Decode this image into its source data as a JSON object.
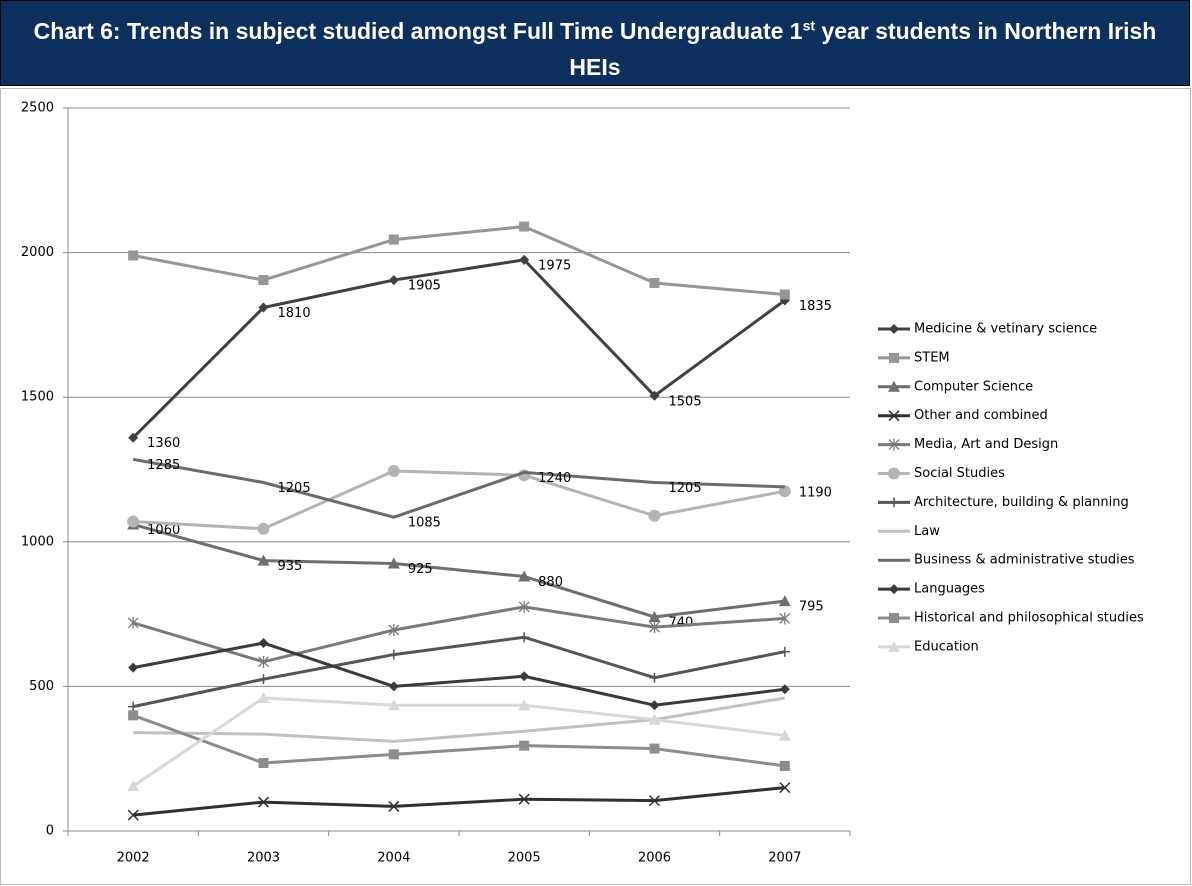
{
  "chart_data": {
    "type": "line",
    "title": [
      "Chart 6: Trends in subject studied amongst Full Time Undergraduate 1",
      "st",
      " year students in Northern Irish HEIs"
    ],
    "categories": [
      "2002",
      "2003",
      "2004",
      "2005",
      "2006",
      "2007"
    ],
    "ylim": [
      0,
      2500
    ],
    "yticks": [
      0,
      500,
      1000,
      1500,
      2000,
      2500
    ],
    "grid": true,
    "legend": "right",
    "series": [
      {
        "name": "Medicine & vetinary science",
        "color": "#404040",
        "marker": "diamond",
        "show_labels": true,
        "values": [
          1360,
          1810,
          1905,
          1975,
          1505,
          1835
        ]
      },
      {
        "name": "STEM",
        "color": "#969696",
        "marker": "square",
        "values": [
          1990,
          1905,
          2045,
          2090,
          1895,
          1855
        ]
      },
      {
        "name": "Computer Science",
        "color": "#6e6e6e",
        "marker": "triangle",
        "show_labels": true,
        "values": [
          1060,
          935,
          925,
          880,
          740,
          795
        ]
      },
      {
        "name": "Other and combined",
        "color": "#303030",
        "marker": "x",
        "values": [
          55,
          100,
          85,
          110,
          105,
          150
        ]
      },
      {
        "name": "Media, Art and Design",
        "color": "#7a7a7a",
        "marker": "star",
        "values": [
          720,
          585,
          695,
          775,
          705,
          735
        ]
      },
      {
        "name": "Social Studies",
        "color": "#b4b4b4",
        "marker": "circle",
        "values": [
          1070,
          1045,
          1245,
          1230,
          1090,
          1175
        ]
      },
      {
        "name": "Architecture, building & planning",
        "color": "#555555",
        "marker": "plus",
        "values": [
          430,
          525,
          610,
          670,
          530,
          620
        ]
      },
      {
        "name": "Law",
        "color": "#c0c0c0",
        "marker": "none",
        "values": [
          340,
          335,
          310,
          345,
          385,
          460
        ]
      },
      {
        "name": "Business & administrative  studies",
        "color": "#6b6b6b",
        "marker": "none",
        "show_labels": true,
        "values": [
          1285,
          1205,
          1085,
          1240,
          1205,
          1190
        ]
      },
      {
        "name": "Languages",
        "color": "#3a3a3a",
        "marker": "diamond",
        "values": [
          565,
          650,
          500,
          535,
          435,
          490
        ]
      },
      {
        "name": "Historical and philosophical studies",
        "color": "#8c8c8c",
        "marker": "square",
        "values": [
          400,
          235,
          265,
          295,
          285,
          225
        ]
      },
      {
        "name": "Education",
        "color": "#d8d8d8",
        "marker": "triangle",
        "values": [
          155,
          460,
          435,
          435,
          385,
          330
        ]
      }
    ]
  }
}
